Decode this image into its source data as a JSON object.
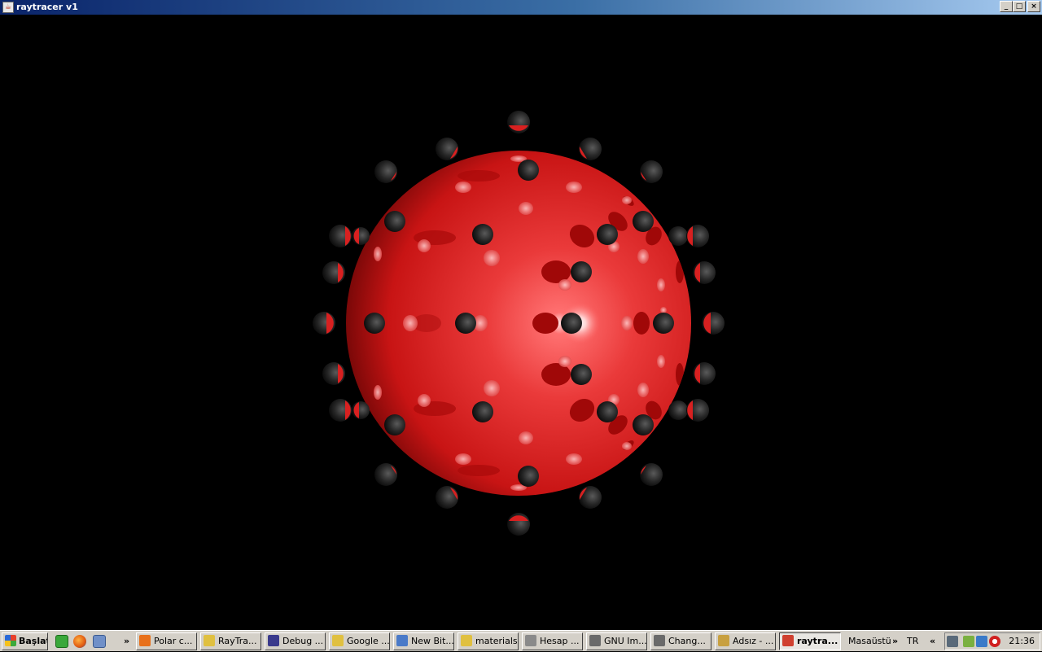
{
  "window": {
    "title": "raytracer v1",
    "controls": {
      "minimize": "_",
      "maximize": "□",
      "close": "×"
    }
  },
  "scene": {
    "main_sphere_color": "#e02020",
    "small_sphere_color": "#2a2a2a",
    "background": "#000000"
  },
  "taskbar": {
    "start_label": "Başlat",
    "overflow_glyph": "»",
    "tasks": [
      {
        "label": "Polar c...",
        "icon": "firefox-icon",
        "color": "#e8701a"
      },
      {
        "label": "RayTra...",
        "icon": "java-file-icon",
        "color": "#e0c040"
      },
      {
        "label": "Debug ...",
        "icon": "eclipse-icon",
        "color": "#3a3a8c"
      },
      {
        "label": "Google ...",
        "icon": "java-file-icon",
        "color": "#e0c040"
      },
      {
        "label": "New Bit...",
        "icon": "folder-window-icon",
        "color": "#4a7ac8"
      },
      {
        "label": "materials",
        "icon": "java-file-icon",
        "color": "#e0c040"
      },
      {
        "label": "Hesap ...",
        "icon": "calculator-icon",
        "color": "#8a8a8a"
      },
      {
        "label": "GNU Im...",
        "icon": "gimp-icon",
        "color": "#6a6a6a"
      },
      {
        "label": "Chang...",
        "icon": "gimp-icon",
        "color": "#6a6a6a"
      },
      {
        "label": "Adsız - ...",
        "icon": "paint-icon",
        "color": "#c8a040"
      },
      {
        "label": "raytra...",
        "icon": "java-app-icon",
        "color": "#d04030",
        "active": true
      }
    ],
    "desktop_label": "Masaüstü",
    "desktop_overflow": "»",
    "language": "TR",
    "tray_collapse": "«",
    "clock": "21:36"
  }
}
